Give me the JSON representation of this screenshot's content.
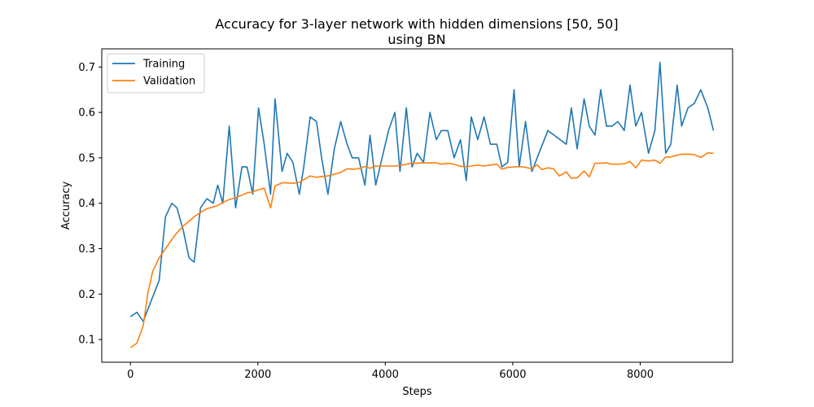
{
  "chart_data": {
    "type": "line",
    "title_line1": "Accuracy for 3-layer network with hidden dimensions [50, 50]",
    "title_line2": "using BN",
    "xlabel": "Steps",
    "ylabel": "Accuracy",
    "xlim": [
      -450,
      9450
    ],
    "ylim": [
      0.05,
      0.74
    ],
    "xticks": [
      0,
      2000,
      4000,
      6000,
      8000
    ],
    "yticks": [
      0.1,
      0.2,
      0.3,
      0.4,
      0.5,
      0.6,
      0.7
    ],
    "grid": false,
    "legend_position": "top-left",
    "series": [
      {
        "name": "Training",
        "color": "#1f77b4",
        "points": [
          [
            0,
            0.15
          ],
          [
            100,
            0.16
          ],
          [
            200,
            0.14
          ],
          [
            450,
            0.23
          ],
          [
            550,
            0.37
          ],
          [
            650,
            0.4
          ],
          [
            730,
            0.39
          ],
          [
            830,
            0.34
          ],
          [
            920,
            0.28
          ],
          [
            1000,
            0.27
          ],
          [
            1100,
            0.39
          ],
          [
            1200,
            0.41
          ],
          [
            1300,
            0.4
          ],
          [
            1370,
            0.44
          ],
          [
            1450,
            0.4
          ],
          [
            1550,
            0.57
          ],
          [
            1650,
            0.39
          ],
          [
            1750,
            0.48
          ],
          [
            1830,
            0.48
          ],
          [
            1920,
            0.42
          ],
          [
            2010,
            0.61
          ],
          [
            2100,
            0.53
          ],
          [
            2200,
            0.42
          ],
          [
            2270,
            0.63
          ],
          [
            2380,
            0.47
          ],
          [
            2460,
            0.51
          ],
          [
            2550,
            0.49
          ],
          [
            2650,
            0.42
          ],
          [
            2720,
            0.48
          ],
          [
            2820,
            0.59
          ],
          [
            2920,
            0.58
          ],
          [
            3000,
            0.5
          ],
          [
            3100,
            0.42
          ],
          [
            3200,
            0.52
          ],
          [
            3300,
            0.58
          ],
          [
            3400,
            0.53
          ],
          [
            3480,
            0.5
          ],
          [
            3580,
            0.5
          ],
          [
            3680,
            0.44
          ],
          [
            3760,
            0.55
          ],
          [
            3850,
            0.44
          ],
          [
            3950,
            0.5
          ],
          [
            4050,
            0.56
          ],
          [
            4150,
            0.6
          ],
          [
            4230,
            0.47
          ],
          [
            4330,
            0.61
          ],
          [
            4420,
            0.48
          ],
          [
            4500,
            0.51
          ],
          [
            4600,
            0.49
          ],
          [
            4700,
            0.6
          ],
          [
            4800,
            0.54
          ],
          [
            4880,
            0.56
          ],
          [
            4980,
            0.56
          ],
          [
            5080,
            0.5
          ],
          [
            5180,
            0.54
          ],
          [
            5270,
            0.45
          ],
          [
            5350,
            0.59
          ],
          [
            5450,
            0.54
          ],
          [
            5550,
            0.59
          ],
          [
            5650,
            0.53
          ],
          [
            5750,
            0.53
          ],
          [
            5830,
            0.48
          ],
          [
            5920,
            0.49
          ],
          [
            6020,
            0.65
          ],
          [
            6100,
            0.48
          ],
          [
            6200,
            0.58
          ],
          [
            6300,
            0.47
          ],
          [
            6550,
            0.56
          ],
          [
            6840,
            0.53
          ],
          [
            6920,
            0.61
          ],
          [
            7010,
            0.52
          ],
          [
            7120,
            0.63
          ],
          [
            7200,
            0.57
          ],
          [
            7290,
            0.55
          ],
          [
            7380,
            0.65
          ],
          [
            7470,
            0.57
          ],
          [
            7560,
            0.57
          ],
          [
            7650,
            0.58
          ],
          [
            7750,
            0.56
          ],
          [
            7840,
            0.66
          ],
          [
            7930,
            0.57
          ],
          [
            8020,
            0.6
          ],
          [
            8130,
            0.51
          ],
          [
            8230,
            0.56
          ],
          [
            8310,
            0.71
          ],
          [
            8400,
            0.51
          ],
          [
            8480,
            0.53
          ],
          [
            8580,
            0.66
          ],
          [
            8650,
            0.57
          ],
          [
            8750,
            0.61
          ],
          [
            8850,
            0.62
          ],
          [
            8950,
            0.65
          ],
          [
            9060,
            0.61
          ],
          [
            9150,
            0.56
          ]
        ]
      },
      {
        "name": "Validation",
        "color": "#ff7f0e",
        "points": [
          [
            0,
            0.082
          ],
          [
            100,
            0.092
          ],
          [
            200,
            0.13
          ],
          [
            270,
            0.2
          ],
          [
            350,
            0.25
          ],
          [
            450,
            0.28
          ],
          [
            550,
            0.3
          ],
          [
            650,
            0.32
          ],
          [
            730,
            0.335
          ],
          [
            830,
            0.35
          ],
          [
            920,
            0.36
          ],
          [
            1000,
            0.37
          ],
          [
            1100,
            0.38
          ],
          [
            1200,
            0.388
          ],
          [
            1300,
            0.392
          ],
          [
            1370,
            0.395
          ],
          [
            1450,
            0.402
          ],
          [
            1550,
            0.408
          ],
          [
            1650,
            0.412
          ],
          [
            1750,
            0.418
          ],
          [
            1830,
            0.423
          ],
          [
            1920,
            0.425
          ],
          [
            2010,
            0.43
          ],
          [
            2100,
            0.433
          ],
          [
            2200,
            0.39
          ],
          [
            2270,
            0.438
          ],
          [
            2380,
            0.445
          ],
          [
            2460,
            0.445
          ],
          [
            2550,
            0.444
          ],
          [
            2650,
            0.446
          ],
          [
            2720,
            0.452
          ],
          [
            2820,
            0.46
          ],
          [
            2920,
            0.457
          ],
          [
            3000,
            0.459
          ],
          [
            3100,
            0.46
          ],
          [
            3200,
            0.464
          ],
          [
            3300,
            0.468
          ],
          [
            3400,
            0.476
          ],
          [
            3480,
            0.475
          ],
          [
            3580,
            0.476
          ],
          [
            3680,
            0.481
          ],
          [
            3760,
            0.477
          ],
          [
            3850,
            0.482
          ],
          [
            3950,
            0.482
          ],
          [
            4050,
            0.482
          ],
          [
            4150,
            0.482
          ],
          [
            4230,
            0.483
          ],
          [
            4330,
            0.486
          ],
          [
            4420,
            0.488
          ],
          [
            4500,
            0.488
          ],
          [
            4600,
            0.489
          ],
          [
            4700,
            0.489
          ],
          [
            4800,
            0.489
          ],
          [
            4880,
            0.486
          ],
          [
            4980,
            0.488
          ],
          [
            5080,
            0.486
          ],
          [
            5180,
            0.481
          ],
          [
            5270,
            0.481
          ],
          [
            5350,
            0.482
          ],
          [
            5450,
            0.484
          ],
          [
            5550,
            0.482
          ],
          [
            5650,
            0.484
          ],
          [
            5750,
            0.486
          ],
          [
            5830,
            0.475
          ],
          [
            5920,
            0.479
          ],
          [
            6020,
            0.48
          ],
          [
            6100,
            0.481
          ],
          [
            6200,
            0.479
          ],
          [
            6300,
            0.476
          ],
          [
            6380,
            0.485
          ],
          [
            6460,
            0.474
          ],
          [
            6550,
            0.478
          ],
          [
            6640,
            0.476
          ],
          [
            6730,
            0.46
          ],
          [
            6840,
            0.469
          ],
          [
            6920,
            0.455
          ],
          [
            7010,
            0.456
          ],
          [
            7120,
            0.471
          ],
          [
            7200,
            0.458
          ],
          [
            7290,
            0.488
          ],
          [
            7380,
            0.488
          ],
          [
            7470,
            0.489
          ],
          [
            7560,
            0.486
          ],
          [
            7650,
            0.486
          ],
          [
            7750,
            0.487
          ],
          [
            7840,
            0.492
          ],
          [
            7930,
            0.478
          ],
          [
            8020,
            0.495
          ],
          [
            8130,
            0.493
          ],
          [
            8230,
            0.495
          ],
          [
            8310,
            0.488
          ],
          [
            8400,
            0.502
          ],
          [
            8480,
            0.502
          ],
          [
            8580,
            0.506
          ],
          [
            8650,
            0.508
          ],
          [
            8750,
            0.508
          ],
          [
            8850,
            0.507
          ],
          [
            8950,
            0.501
          ],
          [
            9060,
            0.511
          ],
          [
            9150,
            0.51
          ]
        ]
      }
    ]
  }
}
